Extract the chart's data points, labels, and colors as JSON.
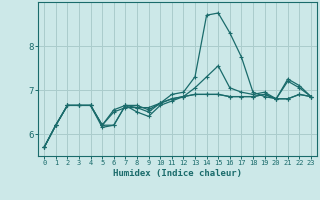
{
  "xlabel": "Humidex (Indice chaleur)",
  "background_color": "#cce8e8",
  "plot_bg_color": "#cce8e8",
  "grid_color": "#aacccc",
  "line_color": "#1a6b6b",
  "xlim": [
    -0.5,
    23.5
  ],
  "ylim": [
    5.5,
    9.0
  ],
  "yticks": [
    6,
    7,
    8
  ],
  "xticks": [
    0,
    1,
    2,
    3,
    4,
    5,
    6,
    7,
    8,
    9,
    10,
    11,
    12,
    13,
    14,
    15,
    16,
    17,
    18,
    19,
    20,
    21,
    22,
    23
  ],
  "lines": [
    [
      5.7,
      6.2,
      6.65,
      6.65,
      6.65,
      6.2,
      6.2,
      6.65,
      6.6,
      6.5,
      6.7,
      6.9,
      6.95,
      7.3,
      8.7,
      8.75,
      8.3,
      7.75,
      6.95,
      6.85,
      6.8,
      7.25,
      7.1,
      6.85
    ],
    [
      5.7,
      6.2,
      6.65,
      6.65,
      6.65,
      6.2,
      6.55,
      6.65,
      6.65,
      6.55,
      6.7,
      6.8,
      6.85,
      7.05,
      7.3,
      7.55,
      7.05,
      6.95,
      6.9,
      6.95,
      6.8,
      7.2,
      7.05,
      6.85
    ],
    [
      5.7,
      6.2,
      6.65,
      6.65,
      6.65,
      6.15,
      6.2,
      6.65,
      6.5,
      6.4,
      6.65,
      6.75,
      6.85,
      6.9,
      6.9,
      6.9,
      6.85,
      6.85,
      6.85,
      6.9,
      6.8,
      6.8,
      6.9,
      6.85
    ],
    [
      5.7,
      6.2,
      6.65,
      6.65,
      6.65,
      6.2,
      6.5,
      6.6,
      6.6,
      6.6,
      6.7,
      6.8,
      6.85,
      6.9,
      6.9,
      6.9,
      6.85,
      6.85,
      6.85,
      6.9,
      6.8,
      6.8,
      6.9,
      6.85
    ]
  ]
}
